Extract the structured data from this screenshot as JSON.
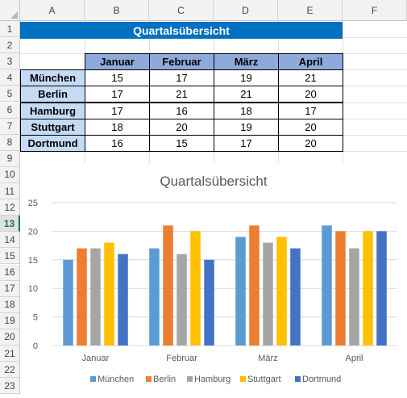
{
  "columns": [
    "A",
    "B",
    "C",
    "D",
    "E",
    "F"
  ],
  "rows": [
    "1",
    "2",
    "3",
    "4",
    "5",
    "6",
    "7",
    "8",
    "9",
    "10",
    "11",
    "12",
    "13",
    "14",
    "15",
    "16",
    "17",
    "18",
    "19",
    "20",
    "21",
    "22",
    "23"
  ],
  "selected_row": "13",
  "sheet": {
    "title": "Quartalsübersicht",
    "months": [
      "Januar",
      "Februar",
      "März",
      "April"
    ],
    "cities": [
      "München",
      "Berlin",
      "Hamburg",
      "Stuttgart",
      "Dortmund"
    ],
    "values": [
      [
        15,
        17,
        19,
        21
      ],
      [
        17,
        21,
        21,
        20
      ],
      [
        17,
        16,
        18,
        17
      ],
      [
        18,
        20,
        19,
        20
      ],
      [
        16,
        15,
        17,
        20
      ]
    ]
  },
  "chart_data": {
    "type": "bar",
    "title": "Quartalsübersicht",
    "categories": [
      "Januar",
      "Februar",
      "März",
      "April"
    ],
    "series": [
      {
        "name": "München",
        "values": [
          15,
          17,
          19,
          21
        ],
        "color": "#5b9bd5"
      },
      {
        "name": "Berlin",
        "values": [
          17,
          21,
          21,
          20
        ],
        "color": "#ed7d31"
      },
      {
        "name": "Hamburg",
        "values": [
          17,
          16,
          18,
          17
        ],
        "color": "#a5a5a5"
      },
      {
        "name": "Stuttgart",
        "values": [
          18,
          20,
          19,
          20
        ],
        "color": "#ffc000"
      },
      {
        "name": "Dortmund",
        "values": [
          16,
          15,
          17,
          20
        ],
        "color": "#4472c4"
      }
    ],
    "yticks": [
      "0",
      "5",
      "10",
      "15",
      "20",
      "25"
    ],
    "ylim": [
      0,
      25
    ],
    "grid": true,
    "legend": "bottom"
  }
}
